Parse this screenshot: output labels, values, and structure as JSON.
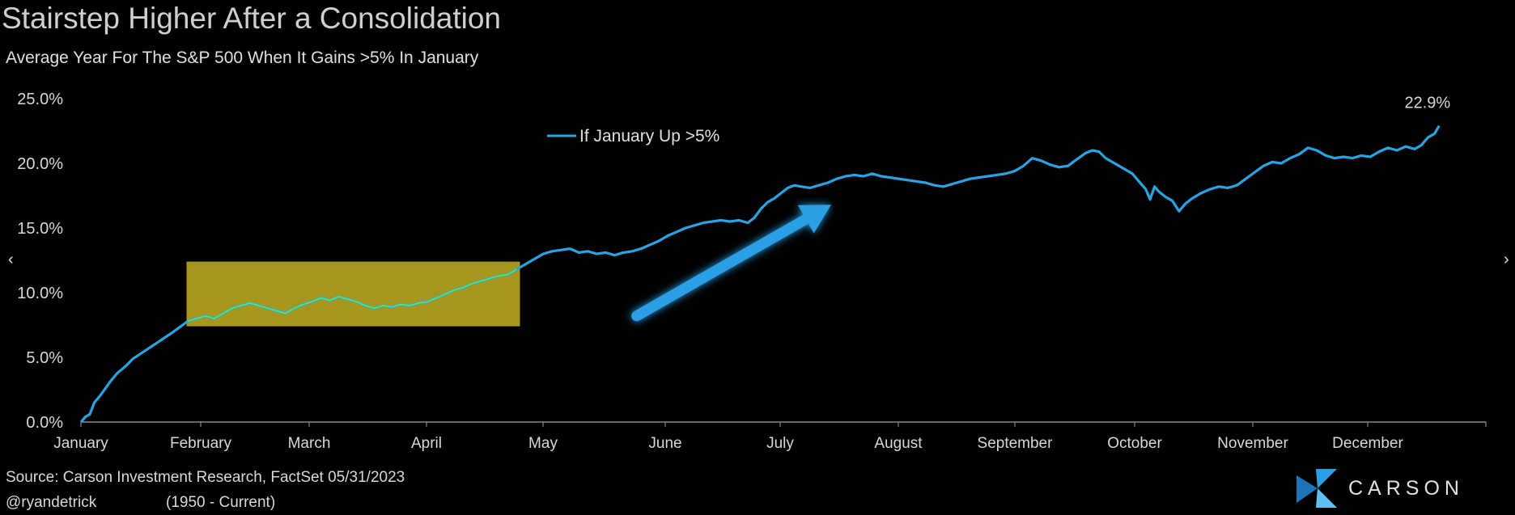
{
  "chart_data": {
    "type": "line",
    "title": "Stairstep Higher After a Consolidation",
    "subtitle": "Average Year For The S&P 500 When It Gains >5% In January",
    "xlabel": "",
    "ylabel": "",
    "x_tick_labels": [
      "January",
      "February",
      "March",
      "April",
      "May",
      "June",
      "July",
      "August",
      "September",
      "October",
      "November",
      "December"
    ],
    "y_tick_labels": [
      "0.0%",
      "5.0%",
      "10.0%",
      "15.0%",
      "20.0%",
      "25.0%"
    ],
    "ylim": [
      0,
      25
    ],
    "xlim": [
      0,
      12
    ],
    "grid": false,
    "legend": {
      "position": "top-center",
      "entries": [
        "If January Up >5%"
      ]
    },
    "end_label": "22.9%",
    "annotations": [
      {
        "type": "highlight-box",
        "x_range": [
          0.95,
          3.95
        ],
        "y_range": [
          7.4,
          12.4
        ],
        "color": "#a6961e"
      },
      {
        "type": "arrow",
        "from": [
          5.0,
          8.2
        ],
        "to": [
          6.75,
          16.8
        ],
        "color": "#2b9fe6"
      }
    ],
    "series": [
      {
        "name": "If January Up >5%",
        "color": "#29a3e3",
        "highlight_color": "#4fe07f",
        "points": [
          [
            0.0,
            0.0
          ],
          [
            0.04,
            0.4
          ],
          [
            0.08,
            0.6
          ],
          [
            0.12,
            1.5
          ],
          [
            0.17,
            2.0
          ],
          [
            0.22,
            2.6
          ],
          [
            0.27,
            3.2
          ],
          [
            0.33,
            3.8
          ],
          [
            0.4,
            4.3
          ],
          [
            0.47,
            4.9
          ],
          [
            0.54,
            5.3
          ],
          [
            0.61,
            5.7
          ],
          [
            0.68,
            6.1
          ],
          [
            0.75,
            6.5
          ],
          [
            0.82,
            6.9
          ],
          [
            0.9,
            7.4
          ],
          [
            0.96,
            7.8
          ],
          [
            1.04,
            8.0
          ],
          [
            1.12,
            8.2
          ],
          [
            1.2,
            8.0
          ],
          [
            1.28,
            8.4
          ],
          [
            1.36,
            8.8
          ],
          [
            1.44,
            9.0
          ],
          [
            1.52,
            9.2
          ],
          [
            1.6,
            9.0
          ],
          [
            1.68,
            8.8
          ],
          [
            1.76,
            8.6
          ],
          [
            1.84,
            8.4
          ],
          [
            1.92,
            8.8
          ],
          [
            2.0,
            9.1
          ],
          [
            2.08,
            9.3
          ],
          [
            2.16,
            9.6
          ],
          [
            2.24,
            9.4
          ],
          [
            2.32,
            9.7
          ],
          [
            2.4,
            9.5
          ],
          [
            2.48,
            9.3
          ],
          [
            2.56,
            9.0
          ],
          [
            2.64,
            8.8
          ],
          [
            2.72,
            9.0
          ],
          [
            2.8,
            8.9
          ],
          [
            2.88,
            9.1
          ],
          [
            2.96,
            9.0
          ],
          [
            3.04,
            9.2
          ],
          [
            3.12,
            9.3
          ],
          [
            3.2,
            9.6
          ],
          [
            3.28,
            9.9
          ],
          [
            3.36,
            10.2
          ],
          [
            3.44,
            10.4
          ],
          [
            3.52,
            10.7
          ],
          [
            3.6,
            10.9
          ],
          [
            3.68,
            11.1
          ],
          [
            3.76,
            11.3
          ],
          [
            3.84,
            11.4
          ],
          [
            3.92,
            11.8
          ],
          [
            4.0,
            12.2
          ],
          [
            4.08,
            12.6
          ],
          [
            4.16,
            13.0
          ],
          [
            4.24,
            13.2
          ],
          [
            4.32,
            13.3
          ],
          [
            4.4,
            13.4
          ],
          [
            4.48,
            13.1
          ],
          [
            4.56,
            13.2
          ],
          [
            4.64,
            13.0
          ],
          [
            4.72,
            13.1
          ],
          [
            4.8,
            12.9
          ],
          [
            4.88,
            13.1
          ],
          [
            4.96,
            13.2
          ],
          [
            5.04,
            13.4
          ],
          [
            5.12,
            13.7
          ],
          [
            5.2,
            14.0
          ],
          [
            5.28,
            14.4
          ],
          [
            5.36,
            14.7
          ],
          [
            5.44,
            15.0
          ],
          [
            5.52,
            15.2
          ],
          [
            5.6,
            15.4
          ],
          [
            5.68,
            15.5
          ],
          [
            5.76,
            15.6
          ],
          [
            5.84,
            15.5
          ],
          [
            5.92,
            15.6
          ],
          [
            6.0,
            15.4
          ],
          [
            6.06,
            15.8
          ],
          [
            6.12,
            16.5
          ],
          [
            6.18,
            17.0
          ],
          [
            6.24,
            17.3
          ],
          [
            6.3,
            17.7
          ],
          [
            6.36,
            18.1
          ],
          [
            6.42,
            18.3
          ],
          [
            6.48,
            18.2
          ],
          [
            6.56,
            18.1
          ],
          [
            6.64,
            18.3
          ],
          [
            6.72,
            18.5
          ],
          [
            6.8,
            18.8
          ],
          [
            6.88,
            19.0
          ],
          [
            6.96,
            19.1
          ],
          [
            7.04,
            19.0
          ],
          [
            7.12,
            19.2
          ],
          [
            7.2,
            19.0
          ],
          [
            7.28,
            18.9
          ],
          [
            7.36,
            18.8
          ],
          [
            7.44,
            18.7
          ],
          [
            7.52,
            18.6
          ],
          [
            7.6,
            18.5
          ],
          [
            7.68,
            18.3
          ],
          [
            7.76,
            18.2
          ],
          [
            7.84,
            18.4
          ],
          [
            7.92,
            18.6
          ],
          [
            8.0,
            18.8
          ],
          [
            8.08,
            18.9
          ],
          [
            8.16,
            19.0
          ],
          [
            8.24,
            19.1
          ],
          [
            8.32,
            19.2
          ],
          [
            8.4,
            19.4
          ],
          [
            8.48,
            19.8
          ],
          [
            8.56,
            20.4
          ],
          [
            8.64,
            20.2
          ],
          [
            8.72,
            19.9
          ],
          [
            8.8,
            19.7
          ],
          [
            8.88,
            19.8
          ],
          [
            8.96,
            20.3
          ],
          [
            9.04,
            20.8
          ],
          [
            9.1,
            21.0
          ],
          [
            9.16,
            20.9
          ],
          [
            9.22,
            20.4
          ],
          [
            9.3,
            20.0
          ],
          [
            9.38,
            19.6
          ],
          [
            9.46,
            19.2
          ],
          [
            9.52,
            18.6
          ],
          [
            9.58,
            18.0
          ],
          [
            9.62,
            17.2
          ],
          [
            9.66,
            18.2
          ],
          [
            9.7,
            17.8
          ],
          [
            9.76,
            17.4
          ],
          [
            9.82,
            17.1
          ],
          [
            9.88,
            16.3
          ],
          [
            9.94,
            16.9
          ],
          [
            10.0,
            17.3
          ],
          [
            10.08,
            17.7
          ],
          [
            10.16,
            18.0
          ],
          [
            10.24,
            18.2
          ],
          [
            10.32,
            18.1
          ],
          [
            10.4,
            18.3
          ],
          [
            10.48,
            18.8
          ],
          [
            10.56,
            19.3
          ],
          [
            10.64,
            19.8
          ],
          [
            10.72,
            20.1
          ],
          [
            10.8,
            20.0
          ],
          [
            10.88,
            20.4
          ],
          [
            10.96,
            20.7
          ],
          [
            11.04,
            21.2
          ],
          [
            11.12,
            21.0
          ],
          [
            11.2,
            20.6
          ],
          [
            11.28,
            20.4
          ],
          [
            11.36,
            20.5
          ],
          [
            11.44,
            20.4
          ],
          [
            11.52,
            20.6
          ],
          [
            11.6,
            20.5
          ],
          [
            11.68,
            20.9
          ],
          [
            11.76,
            21.2
          ],
          [
            11.84,
            21.0
          ],
          [
            11.92,
            21.3
          ],
          [
            12.0,
            21.1
          ],
          [
            12.06,
            21.4
          ],
          [
            12.12,
            22.0
          ],
          [
            12.18,
            22.3
          ],
          [
            12.22,
            22.9
          ]
        ]
      }
    ]
  },
  "footer": {
    "source": "Source: Carson Investment Research, FactSet 05/31/2023",
    "handle": "@ryandetrick",
    "range": "(1950 - Current)"
  },
  "brand": {
    "name": "CARSON",
    "color": "#2b9fe6"
  },
  "nav": {
    "prev": "‹",
    "next": "›"
  }
}
